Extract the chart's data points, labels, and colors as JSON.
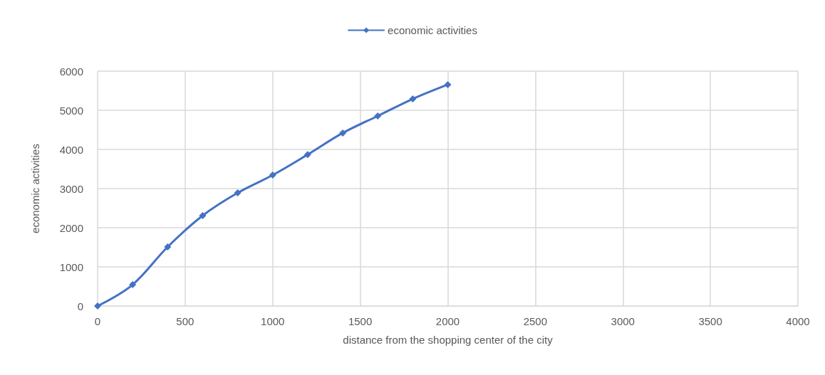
{
  "chart_data": {
    "type": "line",
    "xlabel": "distance from the shopping center of the city",
    "ylabel": "economic activities",
    "x": [
      0,
      200,
      400,
      600,
      800,
      1000,
      1200,
      1400,
      1600,
      1800,
      2000
    ],
    "series": [
      {
        "name": "economic activities",
        "color": "#4472c4",
        "values": [
          0,
          545,
          1510,
          2310,
          2890,
          3345,
          3870,
          4420,
          4855,
          5290,
          5655
        ]
      }
    ],
    "xlim": [
      0,
      4000
    ],
    "xticks": [
      0,
      500,
      1000,
      1500,
      2000,
      2500,
      3000,
      3500,
      4000
    ],
    "ylim": [
      0,
      6000
    ],
    "yticks": [
      0,
      1000,
      2000,
      3000,
      4000,
      5000,
      6000
    ],
    "grid": true,
    "legend": "top",
    "marker": "diamond",
    "line_style": "solid"
  }
}
